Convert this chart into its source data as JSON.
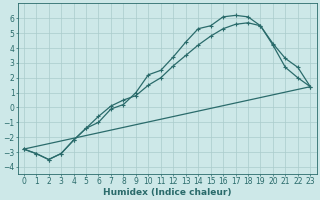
{
  "bg_color": "#cde8e8",
  "grid_color": "#aacccc",
  "line_color": "#2a6b6b",
  "marker": "+",
  "markersize": 3,
  "linewidth": 0.9,
  "xlabel": "Humidex (Indice chaleur)",
  "xlabel_fontsize": 6.5,
  "tick_fontsize": 5.5,
  "ylim": [
    -4.5,
    7.0
  ],
  "xlim": [
    -0.5,
    23.5
  ],
  "yticks": [
    -4,
    -3,
    -2,
    -1,
    0,
    1,
    2,
    3,
    4,
    5,
    6
  ],
  "xticks": [
    0,
    1,
    2,
    3,
    4,
    5,
    6,
    7,
    8,
    9,
    10,
    11,
    12,
    13,
    14,
    15,
    16,
    17,
    18,
    19,
    20,
    21,
    22,
    23
  ],
  "line1_x": [
    0,
    1,
    2,
    3,
    4,
    5,
    6,
    7,
    8,
    9,
    10,
    11,
    12,
    13,
    14,
    15,
    16,
    17,
    18,
    19,
    20,
    21,
    22,
    23
  ],
  "line1_y": [
    -2.8,
    -3.1,
    -3.5,
    -3.1,
    -2.2,
    -1.4,
    -1.0,
    -0.1,
    0.2,
    1.0,
    2.2,
    2.5,
    3.4,
    4.4,
    5.3,
    5.5,
    6.1,
    6.2,
    6.1,
    5.5,
    4.2,
    2.7,
    2.0,
    1.4
  ],
  "line2_x": [
    0,
    1,
    2,
    3,
    4,
    5,
    6,
    7,
    8,
    9,
    10,
    11,
    12,
    13,
    14,
    15,
    16,
    17,
    18,
    19,
    20,
    21,
    22,
    23
  ],
  "line2_y": [
    -2.8,
    -3.1,
    -3.5,
    -3.1,
    -2.2,
    -1.4,
    -0.6,
    0.1,
    0.5,
    0.8,
    1.5,
    2.0,
    2.8,
    3.5,
    4.2,
    4.8,
    5.3,
    5.6,
    5.7,
    5.5,
    4.3,
    3.3,
    2.7,
    1.4
  ],
  "line3_x": [
    0,
    23
  ],
  "line3_y": [
    -2.8,
    1.4
  ]
}
